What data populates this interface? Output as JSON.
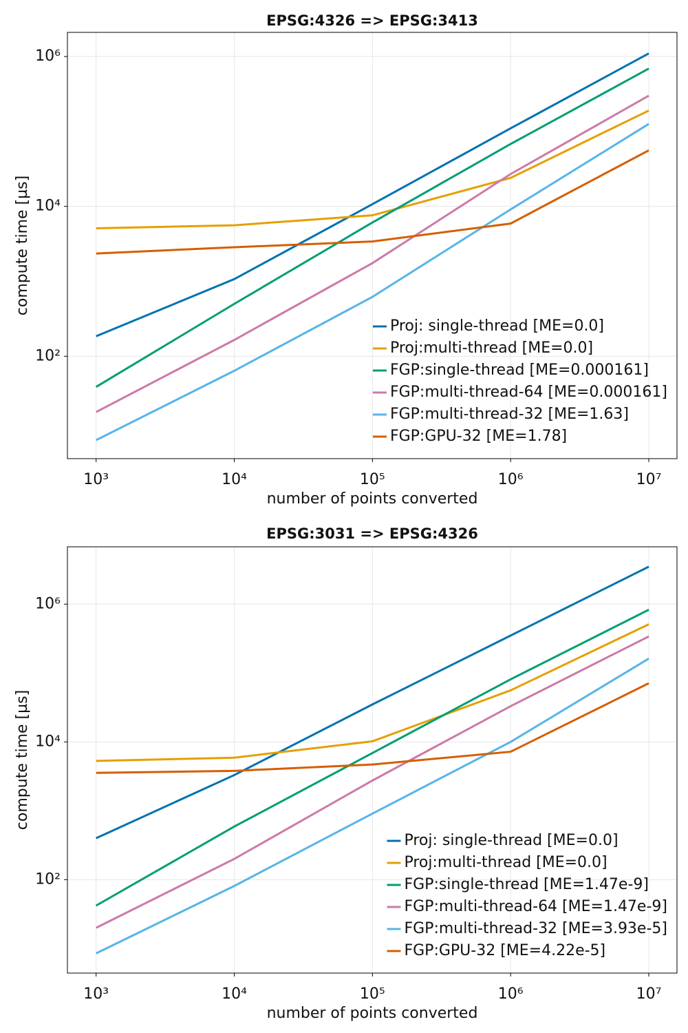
{
  "chart_data": [
    {
      "type": "line",
      "title": "EPSG:4326 => EPSG:3413",
      "x_label": "number of points converted",
      "y_label": "compute time [µs]",
      "x": [
        1000,
        10000,
        100000,
        1000000,
        10000000
      ],
      "xscale": "log",
      "yscale": "log",
      "grid": true,
      "legend": "lower right",
      "xlim": [
        620,
        16000000
      ],
      "ylim": [
        4.3,
        2100000
      ],
      "xticks": [
        {
          "value": 1000,
          "label": "10³"
        },
        {
          "value": 10000,
          "label": "10⁴"
        },
        {
          "value": 100000,
          "label": "10⁵"
        },
        {
          "value": 1000000,
          "label": "10⁶"
        },
        {
          "value": 10000000,
          "label": "10⁷"
        }
      ],
      "yticks": [
        {
          "value": 100,
          "label": "10²"
        },
        {
          "value": 10000,
          "label": "10⁴"
        },
        {
          "value": 1000000,
          "label": "10⁶"
        }
      ],
      "series": [
        {
          "name": "Proj: single-thread [ME=0.0]",
          "color": "#0072b2",
          "values": [
            185,
            1070,
            10700,
            110000,
            1100000
          ]
        },
        {
          "name": "Proj:multi-thread [ME=0.0]",
          "color": "#e69f00",
          "values": [
            5100,
            5600,
            7600,
            24000,
            190000
          ]
        },
        {
          "name": "FGP:single-thread [ME=0.000161]",
          "color": "#009e73",
          "values": [
            39,
            500,
            6100,
            68000,
            690000
          ]
        },
        {
          "name": "FGP:multi-thread-64 [ME=0.000161]",
          "color": "#cc79a7",
          "values": [
            18,
            165,
            1750,
            27000,
            300000
          ]
        },
        {
          "name": "FGP:multi-thread-32 [ME=1.63]",
          "color": "#56b4e9",
          "values": [
            7.6,
            64,
            620,
            9100,
            126000
          ]
        },
        {
          "name": "FGP:GPU-32 [ME=1.78]",
          "color": "#d55e00",
          "values": [
            2350,
            2850,
            3400,
            5900,
            56000
          ]
        }
      ]
    },
    {
      "type": "line",
      "title": "EPSG:3031 => EPSG:4326",
      "x_label": "number of points converted",
      "y_label": "compute time [µs]",
      "x": [
        1000,
        10000,
        100000,
        1000000,
        10000000
      ],
      "xscale": "log",
      "yscale": "log",
      "grid": true,
      "legend": "lower right",
      "xlim": [
        620,
        16000000
      ],
      "ylim": [
        4.4,
        6800000
      ],
      "xticks": [
        {
          "value": 1000,
          "label": "10³"
        },
        {
          "value": 10000,
          "label": "10⁴"
        },
        {
          "value": 100000,
          "label": "10⁵"
        },
        {
          "value": 1000000,
          "label": "10⁶"
        },
        {
          "value": 10000000,
          "label": "10⁷"
        }
      ],
      "yticks": [
        {
          "value": 100,
          "label": "10²"
        },
        {
          "value": 10000,
          "label": "10⁴"
        },
        {
          "value": 1000000,
          "label": "10⁶"
        }
      ],
      "series": [
        {
          "name": "Proj: single-thread [ME=0.0]",
          "color": "#0072b2",
          "values": [
            400,
            3300,
            35000,
            350000,
            3500000
          ]
        },
        {
          "name": "Proj:multi-thread [ME=0.0]",
          "color": "#e69f00",
          "values": [
            5300,
            5900,
            10200,
            56000,
            510000
          ]
        },
        {
          "name": "FGP:single-thread [ME=1.47e-9]",
          "color": "#009e73",
          "values": [
            42,
            590,
            6900,
            81000,
            830000
          ]
        },
        {
          "name": "FGP:multi-thread-64 [ME=1.47e-9]",
          "color": "#cc79a7",
          "values": [
            20,
            200,
            2750,
            33000,
            340000
          ]
        },
        {
          "name": "FGP:multi-thread-32 [ME=3.93e-5]",
          "color": "#56b4e9",
          "values": [
            8.5,
            81,
            910,
            10000,
            162000
          ]
        },
        {
          "name": "FGP:GPU-32 [ME=4.22e-5]",
          "color": "#d55e00",
          "values": [
            3550,
            3800,
            4700,
            7200,
            71000
          ]
        }
      ]
    }
  ]
}
